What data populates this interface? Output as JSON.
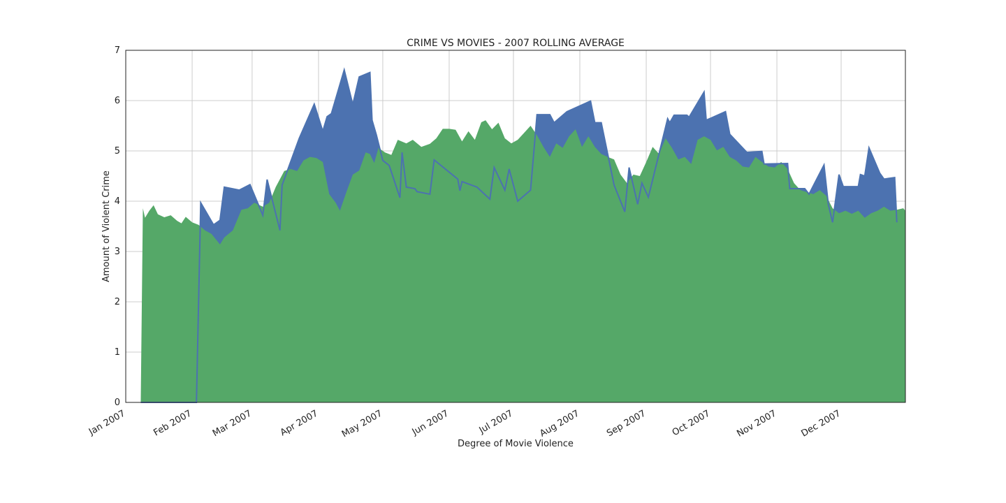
{
  "chart_data": {
    "type": "area",
    "title": "CRIME VS MOVIES - 2007 ROLLING AVERAGE",
    "xlabel": "Degree of Movie Violence",
    "ylabel": "Amount of Violent Crime",
    "xlim": [
      0,
      364
    ],
    "xticks": [
      {
        "value": 0,
        "label": "Jan 2007"
      },
      {
        "value": 31,
        "label": "Feb 2007"
      },
      {
        "value": 59,
        "label": "Mar 2007"
      },
      {
        "value": 90,
        "label": "Apr 2007"
      },
      {
        "value": 120,
        "label": "May 2007"
      },
      {
        "value": 151,
        "label": "Jun 2007"
      },
      {
        "value": 181,
        "label": "Jul 2007"
      },
      {
        "value": 212,
        "label": "Aug 2007"
      },
      {
        "value": 243,
        "label": "Sep 2007"
      },
      {
        "value": 273,
        "label": "Oct 2007"
      },
      {
        "value": 304,
        "label": "Nov 2007"
      },
      {
        "value": 334,
        "label": "Dec 2007"
      }
    ],
    "ylim": [
      0,
      7
    ],
    "yticks": [
      0,
      1,
      2,
      3,
      4,
      5,
      6,
      7
    ],
    "grid": true,
    "series": [
      {
        "color": "#4c72b0",
        "line": true,
        "x": [
          7,
          33,
          35,
          41,
          44,
          46,
          53,
          58,
          64,
          66,
          72,
          73,
          81,
          88,
          92,
          94,
          96,
          102,
          106,
          109,
          114,
          115,
          117,
          120,
          123,
          128,
          129,
          131,
          135,
          136,
          142,
          144,
          155,
          156,
          157,
          164,
          170,
          172,
          177,
          179,
          183,
          189,
          192,
          198,
          200,
          206,
          217,
          219,
          222,
          228,
          233,
          235,
          239,
          241,
          244,
          253,
          254,
          256,
          262,
          263,
          270,
          271,
          280,
          282,
          290,
          297,
          298,
          309,
          310,
          317,
          319,
          326,
          328,
          330,
          333,
          335,
          342,
          343,
          345,
          347,
          352,
          354,
          359,
          360
        ],
        "values": [
          0,
          0,
          3.97,
          3.53,
          3.62,
          4.28,
          4.22,
          4.33,
          3.72,
          4.43,
          3.42,
          4.32,
          5.25,
          5.93,
          5.39,
          5.68,
          5.74,
          6.61,
          5.92,
          6.47,
          6.56,
          5.61,
          5.32,
          4.81,
          4.71,
          4.07,
          4.97,
          4.28,
          4.25,
          4.19,
          4.14,
          4.82,
          4.44,
          4.21,
          4.39,
          4.28,
          4.04,
          4.67,
          4.22,
          4.64,
          4.0,
          4.22,
          5.72,
          5.72,
          5.56,
          5.78,
          5.99,
          5.56,
          5.56,
          4.32,
          3.79,
          4.67,
          3.94,
          4.36,
          4.08,
          5.64,
          5.56,
          5.71,
          5.71,
          5.67,
          6.17,
          5.61,
          5.78,
          5.33,
          4.97,
          4.99,
          4.74,
          4.75,
          4.25,
          4.25,
          4.14,
          4.72,
          3.94,
          3.58,
          4.53,
          4.29,
          4.29,
          4.53,
          4.5,
          5.06,
          4.56,
          4.44,
          4.47,
          3.58
        ]
      },
      {
        "color": "#55a868",
        "line": false,
        "x": [
          7,
          8,
          9,
          11,
          13,
          15,
          18,
          21,
          24,
          26,
          28,
          31,
          34,
          37,
          40,
          44,
          46,
          50,
          54,
          57,
          60,
          64,
          67,
          70,
          74,
          77,
          80,
          83,
          86,
          89,
          92,
          95,
          98,
          100,
          103,
          106,
          109,
          112,
          114,
          116,
          118,
          121,
          124,
          127,
          131,
          134,
          138,
          142,
          145,
          148,
          151,
          154,
          157,
          160,
          163,
          166,
          168,
          171,
          174,
          177,
          180,
          183,
          186,
          189,
          192,
          195,
          198,
          201,
          204,
          207,
          210,
          213,
          216,
          219,
          222,
          225,
          228,
          231,
          234,
          237,
          240,
          243,
          246,
          249,
          252,
          255,
          258,
          261,
          264,
          267,
          270,
          273,
          276,
          279,
          282,
          285,
          288,
          291,
          294,
          297,
          300,
          303,
          306,
          309,
          312,
          315,
          318,
          321,
          324,
          327,
          330,
          333,
          336,
          339,
          342,
          345,
          348,
          351,
          354,
          357,
          360,
          363,
          364
        ],
        "values": [
          0,
          3.86,
          3.67,
          3.81,
          3.92,
          3.74,
          3.68,
          3.72,
          3.61,
          3.56,
          3.69,
          3.58,
          3.53,
          3.42,
          3.35,
          3.14,
          3.28,
          3.42,
          3.83,
          3.86,
          3.97,
          3.89,
          3.97,
          4.28,
          4.6,
          4.64,
          4.6,
          4.81,
          4.88,
          4.86,
          4.78,
          4.14,
          3.97,
          3.81,
          4.18,
          4.53,
          4.61,
          4.97,
          4.94,
          4.76,
          5.06,
          4.97,
          4.92,
          5.22,
          5.15,
          5.22,
          5.08,
          5.14,
          5.25,
          5.44,
          5.44,
          5.42,
          5.19,
          5.39,
          5.22,
          5.57,
          5.61,
          5.43,
          5.56,
          5.25,
          5.15,
          5.22,
          5.36,
          5.5,
          5.31,
          5.08,
          4.88,
          5.15,
          5.06,
          5.29,
          5.43,
          5.08,
          5.29,
          5.08,
          4.94,
          4.88,
          4.83,
          4.53,
          4.36,
          4.53,
          4.5,
          4.78,
          5.08,
          4.94,
          5.25,
          5.06,
          4.83,
          4.88,
          4.74,
          5.22,
          5.29,
          5.22,
          5.01,
          5.08,
          4.88,
          4.81,
          4.69,
          4.67,
          4.88,
          4.78,
          4.69,
          4.67,
          4.78,
          4.64,
          4.36,
          4.22,
          4.18,
          4.14,
          4.22,
          4.11,
          3.86,
          3.76,
          3.81,
          3.75,
          3.81,
          3.67,
          3.76,
          3.81,
          3.89,
          3.81,
          3.83,
          3.86,
          3.81
        ]
      }
    ]
  }
}
